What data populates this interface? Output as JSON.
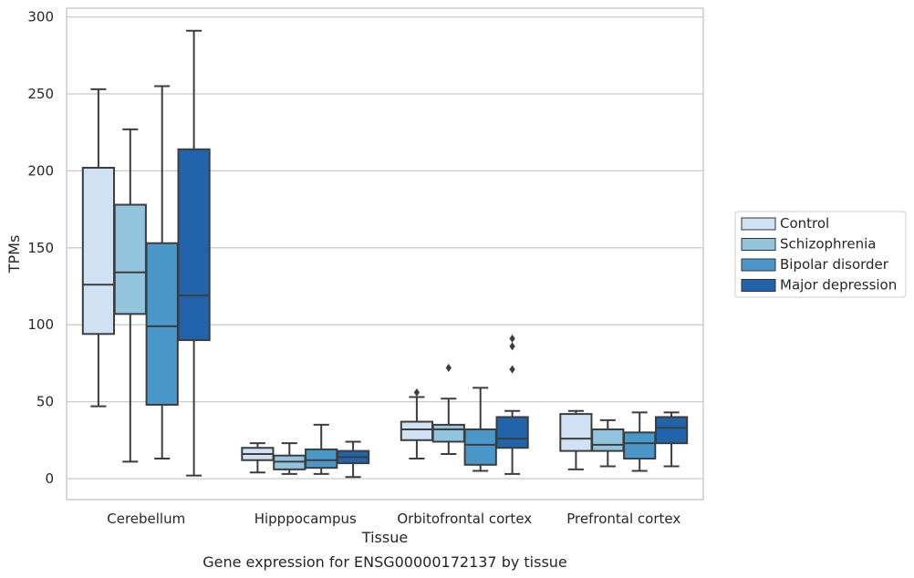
{
  "chart_data": {
    "type": "box",
    "title": "Gene expression for ENSG00000172137 by tissue",
    "xlabel": "Tissue",
    "ylabel": "TPMs",
    "ylim": [
      -13,
      305
    ],
    "yticks": [
      0,
      50,
      100,
      150,
      200,
      250,
      300
    ],
    "grid": true,
    "legend_position": "right",
    "categories": [
      "Cerebellum",
      "Hipppocampus",
      "Orbitofrontal cortex",
      "Prefrontal cortex"
    ],
    "series": [
      {
        "name": "Control",
        "color": "#cfe1f2",
        "boxes": [
          {
            "whisker_low": 47,
            "q1": 94,
            "median": 126,
            "q3": 202,
            "whisker_high": 253,
            "outliers": []
          },
          {
            "whisker_low": 4,
            "q1": 12,
            "median": 16,
            "q3": 20,
            "whisker_high": 23,
            "outliers": []
          },
          {
            "whisker_low": 13,
            "q1": 25,
            "median": 32,
            "q3": 37,
            "whisker_high": 53,
            "outliers": [
              56
            ]
          },
          {
            "whisker_low": 6,
            "q1": 18,
            "median": 26,
            "q3": 42,
            "whisker_high": 44,
            "outliers": []
          }
        ]
      },
      {
        "name": "Schizophrenia",
        "color": "#93c4de",
        "boxes": [
          {
            "whisker_low": 11,
            "q1": 107,
            "median": 134,
            "q3": 178,
            "whisker_high": 227,
            "outliers": []
          },
          {
            "whisker_low": 3,
            "q1": 6,
            "median": 11,
            "q3": 15,
            "whisker_high": 23,
            "outliers": []
          },
          {
            "whisker_low": 16,
            "q1": 24,
            "median": 32,
            "q3": 35,
            "whisker_high": 52,
            "outliers": [
              72
            ]
          },
          {
            "whisker_low": 8,
            "q1": 18,
            "median": 22,
            "q3": 32,
            "whisker_high": 38,
            "outliers": []
          }
        ]
      },
      {
        "name": "Bipolar disorder",
        "color": "#4a98c9",
        "boxes": [
          {
            "whisker_low": 13,
            "q1": 48,
            "median": 99,
            "q3": 153,
            "whisker_high": 255,
            "outliers": []
          },
          {
            "whisker_low": 3,
            "q1": 7,
            "median": 12,
            "q3": 19,
            "whisker_high": 35,
            "outliers": []
          },
          {
            "whisker_low": 5,
            "q1": 9,
            "median": 22,
            "q3": 32,
            "whisker_high": 59,
            "outliers": []
          },
          {
            "whisker_low": 5,
            "q1": 13,
            "median": 23,
            "q3": 30,
            "whisker_high": 43,
            "outliers": []
          }
        ]
      },
      {
        "name": "Major depression",
        "color": "#2164ab",
        "boxes": [
          {
            "whisker_low": 2,
            "q1": 90,
            "median": 119,
            "q3": 214,
            "whisker_high": 291,
            "outliers": []
          },
          {
            "whisker_low": 1,
            "q1": 10,
            "median": 14,
            "q3": 18,
            "whisker_high": 24,
            "outliers": []
          },
          {
            "whisker_low": 3,
            "q1": 20,
            "median": 26,
            "q3": 40,
            "whisker_high": 44,
            "outliers": [
              71,
              86,
              91
            ]
          },
          {
            "whisker_low": 8,
            "q1": 23,
            "median": 33,
            "q3": 40,
            "whisker_high": 43,
            "outliers": []
          }
        ]
      }
    ]
  }
}
